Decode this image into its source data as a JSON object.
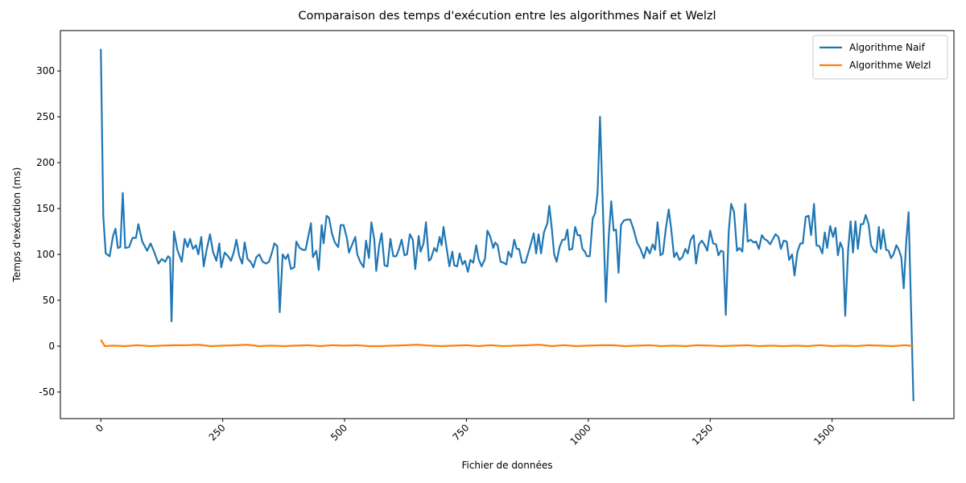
{
  "chart_data": {
    "type": "line",
    "title": "Comparaison des temps d'exécution entre les algorithmes Naif et Welzl",
    "x_label": "Fichier de données",
    "y_label": "Temps d'exécution (ms)",
    "xlim": [
      -83,
      1750
    ],
    "ylim": [
      -79,
      344
    ],
    "xticks": [
      0,
      250,
      500,
      750,
      1000,
      1250,
      1500
    ],
    "yticks": [
      -50,
      0,
      50,
      100,
      150,
      200,
      250,
      300
    ],
    "legend": "upper right",
    "series": [
      {
        "name": "Algorithme Naif",
        "color": "#1f77b4",
        "x": [
          0,
          5,
          10,
          18,
          25,
          30,
          35,
          40,
          45,
          50,
          58,
          65,
          72,
          77,
          85,
          95,
          102,
          110,
          118,
          125,
          132,
          138,
          142,
          145,
          150,
          157,
          166,
          172,
          178,
          183,
          189,
          195,
          200,
          206,
          211,
          217,
          224,
          230,
          237,
          243,
          247,
          254,
          261,
          267,
          273,
          278,
          284,
          290,
          295,
          301,
          307,
          313,
          319,
          325,
          332,
          339,
          345,
          351,
          356,
          362,
          367,
          373,
          379,
          384,
          390,
          397,
          401,
          408,
          414,
          420,
          425,
          431,
          435,
          442,
          447,
          453,
          457,
          463,
          468,
          474,
          480,
          487,
          492,
          498,
          505,
          509,
          515,
          522,
          526,
          532,
          539,
          544,
          550,
          555,
          561,
          565,
          571,
          576,
          582,
          588,
          594,
          600,
          606,
          611,
          617,
          623,
          628,
          634,
          640,
          645,
          652,
          656,
          662,
          667,
          673,
          677,
          684,
          689,
          695,
          699,
          703,
          709,
          715,
          721,
          725,
          731,
          736,
          742,
          747,
          753,
          758,
          764,
          770,
          775,
          781,
          788,
          793,
          799,
          805,
          809,
          814,
          820,
          826,
          832,
          836,
          842,
          848,
          853,
          858,
          864,
          871,
          877,
          883,
          888,
          893,
          898,
          903,
          909,
          916,
          920,
          925,
          930,
          935,
          941,
          947,
          952,
          957,
          961,
          967,
          973,
          978,
          983,
          988,
          993,
          997,
          1003,
          1009,
          1014,
          1019,
          1024,
          1036,
          1042,
          1047,
          1052,
          1057,
          1062,
          1067,
          1073,
          1080,
          1086,
          1093,
          1100,
          1107,
          1114,
          1120,
          1126,
          1132,
          1137,
          1142,
          1148,
          1153,
          1159,
          1165,
          1170,
          1176,
          1181,
          1187,
          1193,
          1199,
          1204,
          1210,
          1216,
          1221,
          1227,
          1233,
          1239,
          1244,
          1250,
          1256,
          1262,
          1267,
          1272,
          1277,
          1282,
          1288,
          1293,
          1299,
          1305,
          1310,
          1316,
          1322,
          1327,
          1333,
          1339,
          1344,
          1350,
          1356,
          1361,
          1367,
          1373,
          1378,
          1384,
          1390,
          1395,
          1401,
          1407,
          1412,
          1418,
          1423,
          1429,
          1435,
          1440,
          1446,
          1452,
          1457,
          1463,
          1468,
          1474,
          1480,
          1485,
          1490,
          1496,
          1502,
          1507,
          1512,
          1517,
          1522,
          1527,
          1533,
          1538,
          1543,
          1548,
          1553,
          1559,
          1564,
          1569,
          1575,
          1580,
          1586,
          1591,
          1596,
          1600,
          1605,
          1611,
          1616,
          1621,
          1626,
          1632,
          1637,
          1642,
          1647,
          1652,
          1657,
          1667
        ],
        "values": [
          324,
          142,
          101,
          98,
          120,
          128,
          107,
          108,
          167,
          107,
          108,
          118,
          118,
          133,
          114,
          104,
          112,
          102,
          90,
          95,
          92,
          98,
          96,
          27,
          125,
          105,
          92,
          117,
          108,
          117,
          106,
          110,
          100,
          119,
          87,
          105,
          122,
          103,
          93,
          112,
          86,
          102,
          98,
          93,
          103,
          116,
          98,
          90,
          113,
          95,
          92,
          86,
          97,
          100,
          92,
          90,
          92,
          102,
          112,
          109,
          37,
          100,
          95,
          100,
          84,
          86,
          114,
          107,
          105,
          105,
          118,
          134,
          97,
          104,
          83,
          132,
          112,
          142,
          140,
          123,
          113,
          108,
          132,
          132,
          117,
          102,
          110,
          119,
          100,
          92,
          86,
          115,
          96,
          135,
          116,
          82,
          110,
          123,
          88,
          87,
          117,
          98,
          98,
          105,
          116,
          99,
          100,
          122,
          116,
          84,
          120,
          103,
          112,
          135,
          93,
          95,
          107,
          103,
          119,
          110,
          130,
          108,
          87,
          103,
          88,
          87,
          101,
          89,
          93,
          81,
          94,
          91,
          110,
          95,
          87,
          95,
          126,
          119,
          107,
          113,
          110,
          92,
          91,
          89,
          103,
          97,
          116,
          106,
          106,
          91,
          91,
          102,
          113,
          123,
          101,
          122,
          101,
          124,
          134,
          153,
          129,
          100,
          92,
          108,
          116,
          116,
          127,
          105,
          106,
          130,
          121,
          121,
          106,
          103,
          98,
          98,
          139,
          145,
          167,
          250,
          48,
          120,
          158,
          126,
          127,
          80,
          132,
          137,
          138,
          138,
          127,
          113,
          106,
          96,
          108,
          101,
          111,
          105,
          135,
          99,
          101,
          128,
          149,
          128,
          97,
          102,
          94,
          97,
          106,
          101,
          116,
          121,
          90,
          111,
          115,
          110,
          104,
          126,
          112,
          111,
          99,
          104,
          103,
          34,
          125,
          155,
          146,
          104,
          107,
          103,
          155,
          114,
          116,
          113,
          114,
          106,
          121,
          117,
          115,
          111,
          116,
          122,
          119,
          106,
          115,
          114,
          94,
          100,
          77,
          103,
          112,
          112,
          141,
          142,
          121,
          155,
          110,
          109,
          101,
          124,
          107,
          131,
          119,
          129,
          99,
          113,
          106,
          33,
          105,
          136,
          102,
          136,
          106,
          133,
          133,
          143,
          133,
          110,
          104,
          102,
          130,
          106,
          127,
          105,
          104,
          96,
          100,
          110,
          105,
          97,
          63,
          112,
          146,
          -60
        ]
      },
      {
        "name": "Algorithme Welzl",
        "color": "#ff7f0e",
        "x": [
          0,
          8,
          25,
          50,
          75,
          100,
          125,
          150,
          175,
          200,
          225,
          250,
          275,
          300,
          325,
          350,
          375,
          400,
          425,
          450,
          475,
          500,
          525,
          550,
          575,
          600,
          625,
          650,
          675,
          700,
          725,
          750,
          775,
          800,
          825,
          850,
          875,
          900,
          925,
          950,
          975,
          1000,
          1025,
          1050,
          1075,
          1100,
          1125,
          1150,
          1175,
          1200,
          1225,
          1250,
          1275,
          1300,
          1325,
          1350,
          1375,
          1400,
          1425,
          1450,
          1475,
          1500,
          1525,
          1550,
          1575,
          1600,
          1625,
          1650,
          1667
        ],
        "values": [
          7,
          0,
          0.5,
          0,
          1,
          0,
          0.5,
          1,
          1,
          1.5,
          0,
          0.5,
          1,
          1.5,
          0,
          0.5,
          0,
          0.5,
          1,
          0,
          1,
          0.5,
          1,
          0,
          0,
          0.5,
          1,
          1.5,
          0.5,
          0,
          0.5,
          1,
          0,
          1,
          0,
          0.5,
          1,
          1.5,
          0,
          1,
          0,
          0.5,
          1,
          1,
          0,
          0.5,
          1,
          0,
          0.5,
          0,
          1,
          0.5,
          0,
          0.5,
          1,
          0,
          0.5,
          0,
          0.5,
          0,
          1,
          0,
          0.5,
          0,
          1,
          0.5,
          0,
          1,
          0
        ]
      }
    ]
  }
}
